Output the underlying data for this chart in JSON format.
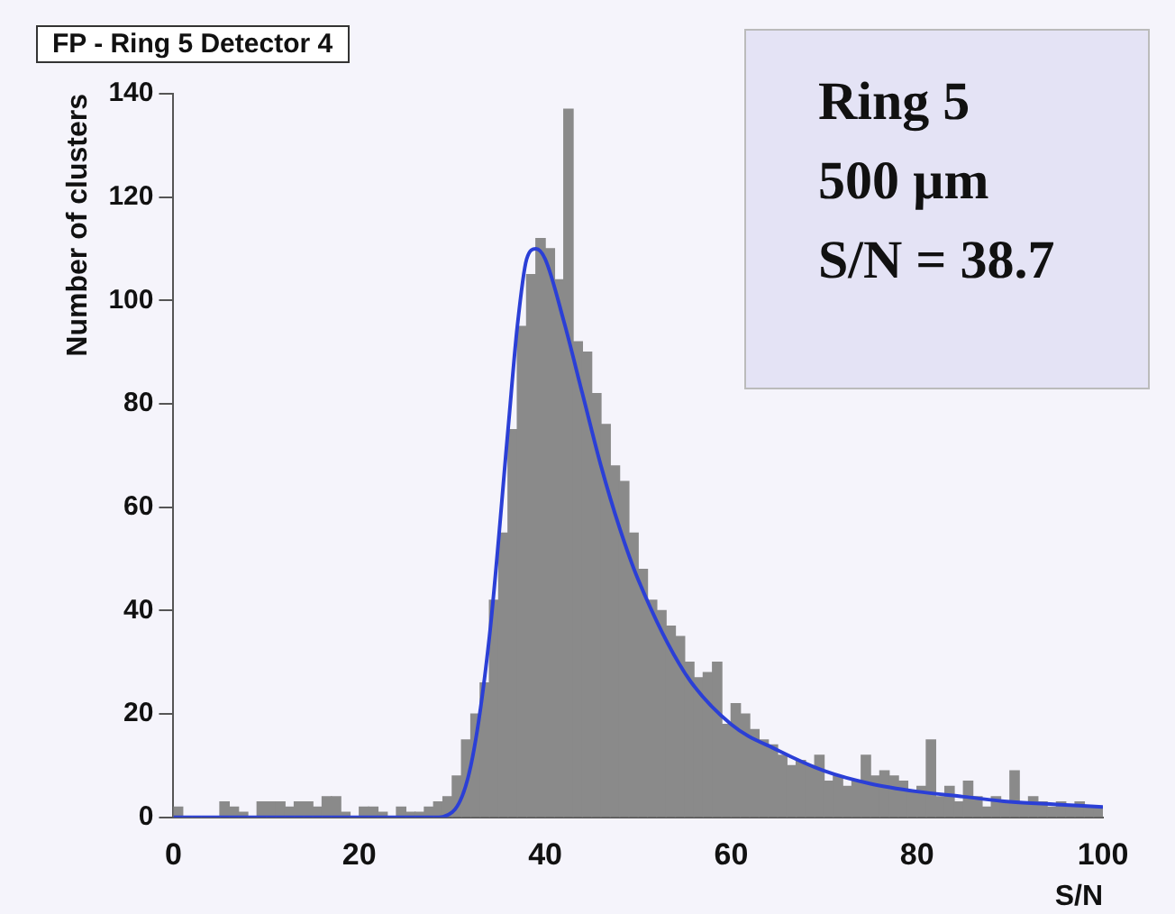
{
  "chart_data": {
    "type": "histogram",
    "title": "FP - Ring 5 Detector 4",
    "xlabel": "S/N",
    "ylabel": "Number of clusters",
    "annotations": [
      "Ring 5",
      "500 µm",
      "S/N = 38.7"
    ],
    "bins": [
      0,
      1,
      2,
      3,
      4,
      5,
      6,
      7,
      8,
      9,
      10,
      11,
      12,
      13,
      14,
      15,
      16,
      17,
      18,
      19,
      20,
      21,
      22,
      23,
      24,
      25,
      26,
      27,
      28,
      29,
      30,
      31,
      32,
      33,
      34,
      35,
      36,
      37,
      38,
      39,
      40,
      41,
      42,
      43,
      44,
      45,
      46,
      47,
      48,
      49,
      50,
      51,
      52,
      53,
      54,
      55,
      56,
      57,
      58,
      59,
      60,
      61,
      62,
      63,
      64,
      65,
      66,
      67,
      68,
      69,
      70,
      71,
      72,
      73,
      74,
      75,
      76,
      77,
      78,
      79,
      80,
      81,
      82,
      83,
      84,
      85,
      86,
      87,
      88,
      89,
      90,
      91,
      92,
      93,
      94,
      95,
      96,
      97,
      98,
      99,
      100
    ],
    "values": [
      2,
      0,
      0,
      0,
      0,
      3,
      2,
      1,
      0,
      3,
      3,
      3,
      2,
      3,
      3,
      2,
      4,
      4,
      1,
      0,
      2,
      2,
      1,
      0,
      2,
      1,
      1,
      2,
      3,
      4,
      8,
      15,
      20,
      26,
      42,
      55,
      75,
      95,
      105,
      112,
      110,
      104,
      137,
      92,
      90,
      82,
      76,
      68,
      65,
      55,
      48,
      42,
      40,
      37,
      35,
      30,
      27,
      28,
      30,
      18,
      22,
      20,
      17,
      15,
      14,
      12,
      10,
      11,
      10,
      12,
      7,
      8,
      6,
      7,
      12,
      8,
      9,
      8,
      7,
      5,
      6,
      15,
      4,
      6,
      3,
      7,
      4,
      2,
      4,
      3,
      9,
      3,
      4,
      3,
      2,
      3,
      2,
      3,
      2,
      2
    ],
    "color": "#8a8a8a",
    "series": [
      {
        "type": "line",
        "color": "#2b3fd6",
        "x": [
          0,
          28,
          30,
          32,
          34,
          36,
          37,
          38,
          39,
          40,
          42,
          44,
          46,
          48,
          50,
          55,
          60,
          65,
          70,
          75,
          80,
          85,
          90,
          95,
          100
        ],
        "values": [
          0,
          0,
          1,
          10,
          35,
          75,
          95,
          108,
          110,
          108,
          96,
          82,
          68,
          56,
          46,
          28,
          18,
          13,
          9,
          6.5,
          5,
          4,
          3,
          2.5,
          2
        ]
      }
    ],
    "xlim": [
      0,
      100
    ],
    "xticks": [
      0,
      20,
      40,
      60,
      80,
      100
    ],
    "ylim": [
      0,
      140
    ],
    "yticks": [
      0,
      20,
      40,
      60,
      80,
      100,
      120,
      140
    ],
    "grid": false,
    "legend": false
  }
}
